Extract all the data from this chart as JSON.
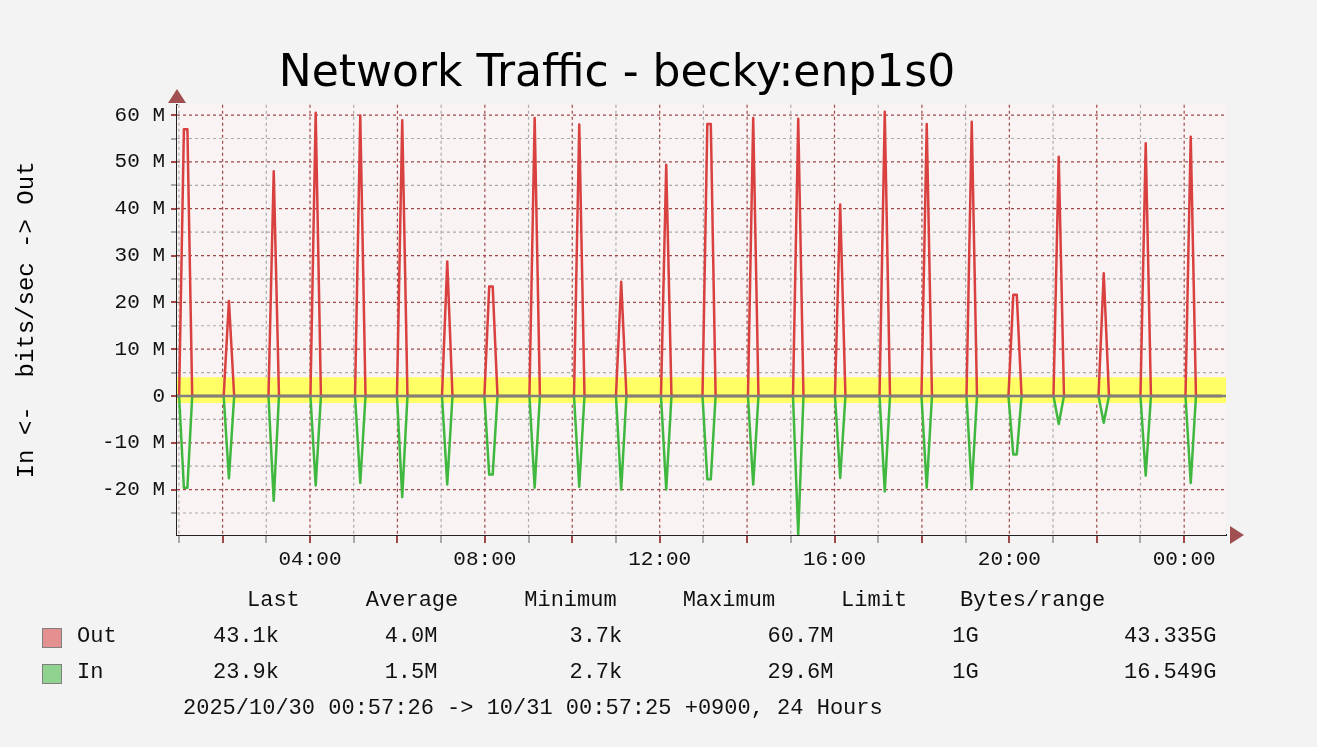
{
  "chart_data": {
    "type": "line",
    "title": "Network Traffic - becky:enp1s0",
    "ylabel": "In <-  bits/sec -> Out",
    "x": [
      0.957,
      1.005,
      1.115,
      1.195,
      1.305,
      2.025,
      2.145,
      2.265,
      3.05,
      3.17,
      3.29,
      4.01,
      4.13,
      4.25,
      5.03,
      5.15,
      5.27,
      5.99,
      6.11,
      6.23,
      7.02,
      7.14,
      7.26,
      7.99,
      8.1,
      8.18,
      8.29,
      9.02,
      9.14,
      9.26,
      10.04,
      10.16,
      10.28,
      11.0,
      11.12,
      11.24,
      12.03,
      12.15,
      12.27,
      12.98,
      13.09,
      13.17,
      13.28,
      14.02,
      14.14,
      14.26,
      15.05,
      15.17,
      15.29,
      16.01,
      16.13,
      16.25,
      17.03,
      17.15,
      17.27,
      17.99,
      18.11,
      18.23,
      19.02,
      19.14,
      19.26,
      19.98,
      20.09,
      20.17,
      20.28,
      21.01,
      21.13,
      21.25,
      22.04,
      22.16,
      22.28,
      23.0,
      23.12,
      23.24,
      24.03,
      24.15,
      24.27,
      24.86
    ],
    "series": [
      {
        "name": "Out",
        "color": "#d94040",
        "values": [
          0,
          0,
          57.0,
          57.0,
          0,
          0,
          20.3,
          0,
          0,
          48.0,
          0,
          0,
          60.5,
          0,
          0,
          59.9,
          0,
          0,
          58.9,
          0,
          0,
          28.7,
          0,
          0,
          23.4,
          23.4,
          0,
          0,
          59.4,
          0,
          0,
          58.0,
          0,
          0,
          24.4,
          0,
          0,
          49.4,
          0,
          0,
          58.1,
          58.1,
          0,
          0,
          59.4,
          0,
          0,
          59.2,
          0,
          0,
          40.9,
          0,
          0,
          60.7,
          0,
          0,
          58.1,
          0,
          0,
          58.6,
          0,
          0,
          21.6,
          21.6,
          0,
          0,
          51.1,
          0,
          0,
          26.2,
          0,
          0,
          54.0,
          0,
          0,
          55.4,
          0,
          0
        ]
      },
      {
        "name": "In",
        "color": "#40b840",
        "values": [
          0,
          0,
          -19.6,
          -19.6,
          0,
          0,
          -17.6,
          0,
          0,
          -22.4,
          0,
          0,
          -19.1,
          0,
          0,
          -18.6,
          0,
          0,
          -21.6,
          0,
          0,
          -18.9,
          0,
          0,
          -16.8,
          -16.8,
          0,
          0,
          -19.6,
          0,
          0,
          -19.4,
          0,
          0,
          -20.0,
          0,
          0,
          -20.0,
          0,
          0,
          -17.8,
          -17.8,
          0,
          0,
          -18.9,
          0,
          0,
          -29.6,
          0,
          0,
          -17.5,
          0,
          0,
          -20.4,
          0,
          0,
          -19.6,
          0,
          0,
          -19.9,
          0,
          0,
          -12.5,
          -12.5,
          0,
          0,
          -6.0,
          0,
          0,
          -5.7,
          0,
          0,
          -17.0,
          0,
          0,
          -18.6,
          0,
          0
        ]
      }
    ],
    "xlim": [
      0.957,
      24.957
    ],
    "xticks": [
      {
        "value": 1,
        "label": null
      },
      {
        "value": 2,
        "label": null
      },
      {
        "value": 3,
        "label": null
      },
      {
        "value": 4,
        "label": "04:00"
      },
      {
        "value": 5,
        "label": null
      },
      {
        "value": 6,
        "label": null
      },
      {
        "value": 7,
        "label": null
      },
      {
        "value": 8,
        "label": "08:00"
      },
      {
        "value": 9,
        "label": null
      },
      {
        "value": 10,
        "label": null
      },
      {
        "value": 11,
        "label": null
      },
      {
        "value": 12,
        "label": "12:00"
      },
      {
        "value": 13,
        "label": null
      },
      {
        "value": 14,
        "label": null
      },
      {
        "value": 15,
        "label": null
      },
      {
        "value": 16,
        "label": "16:00"
      },
      {
        "value": 17,
        "label": null
      },
      {
        "value": 18,
        "label": null
      },
      {
        "value": 19,
        "label": null
      },
      {
        "value": 20,
        "label": "20:00"
      },
      {
        "value": 21,
        "label": null
      },
      {
        "value": 22,
        "label": null
      },
      {
        "value": 23,
        "label": null
      },
      {
        "value": 24,
        "label": "00:00"
      }
    ],
    "ylim": [
      -29.7,
      62.2
    ],
    "yticks": [
      {
        "value": -25,
        "label": null
      },
      {
        "value": -20,
        "label": "-20 M"
      },
      {
        "value": -15,
        "label": null
      },
      {
        "value": -10,
        "label": "-10 M"
      },
      {
        "value": -5,
        "label": null
      },
      0,
      {
        "value": 5,
        "label": null
      },
      {
        "value": 10,
        "label": "10 M"
      },
      {
        "value": 15,
        "label": null
      },
      {
        "value": 20,
        "label": "20 M"
      },
      {
        "value": 25,
        "label": null
      },
      {
        "value": 30,
        "label": "30 M"
      },
      {
        "value": 35,
        "label": null
      },
      {
        "value": 40,
        "label": "40 M"
      },
      {
        "value": 45,
        "label": null
      },
      {
        "value": 50,
        "label": "50 M"
      },
      {
        "value": 55,
        "label": null
      },
      {
        "value": 60,
        "label": "60 M"
      }
    ],
    "bands": [
      {
        "axis": "y",
        "from": -1.5,
        "to": 4.0,
        "color": "#ffff66"
      }
    ],
    "ref_lines": [
      {
        "axis": "y",
        "value": 0,
        "color": "#808080"
      }
    ],
    "grid": true,
    "legend": "bottom",
    "marker": "none",
    "line_style": "solid",
    "annotations": [
      "Last     Average     Minimum     Maximum     Limit    Bytes/range",
      "43.1k        4.0M          3.7k           60.7M         1G           43.335G",
      "23.9k        1.5M          2.7k           29.6M         1G           16.549G",
      "2025/10/30 00:57:26 -> 10/31 00:57:25 +0900, 24 Hours"
    ]
  }
}
